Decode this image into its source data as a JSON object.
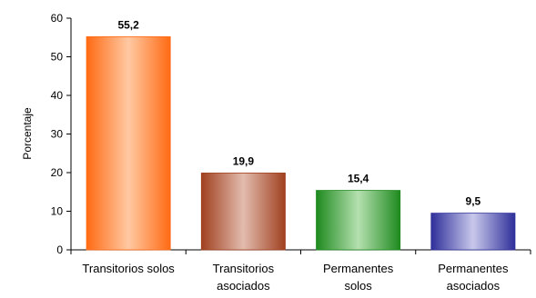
{
  "chart_data": {
    "type": "bar",
    "title": "",
    "xlabel": "",
    "ylabel": "Porcentaje",
    "ylim": [
      0,
      60
    ],
    "yticks": [
      "0",
      "10",
      "20",
      "30",
      "40",
      "50",
      "60"
    ],
    "grid": false,
    "legend": "none",
    "categories": [
      [
        "Transitorios solos"
      ],
      [
        "Transitorios",
        "asociados"
      ],
      [
        "Permanentes",
        "solos"
      ],
      [
        "Permanentes",
        "asociados"
      ]
    ],
    "values": [
      55.2,
      19.9,
      15.4,
      9.5
    ],
    "data_labels": [
      "55,2",
      "19,9",
      "15,4",
      "9,5"
    ],
    "colors": [
      {
        "edge": "#ff6a13",
        "mid": "#ffc9a3"
      },
      {
        "edge": "#a0401f",
        "mid": "#e2bcae"
      },
      {
        "edge": "#1e8a1e",
        "mid": "#b5e0b0"
      },
      {
        "edge": "#2f2f9a",
        "mid": "#c8c8ec"
      }
    ]
  }
}
